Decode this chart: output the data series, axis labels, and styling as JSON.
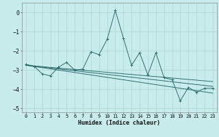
{
  "xlabel": "Humidex (Indice chaleur)",
  "background_color": "#c8ecec",
  "grid_color": "#b0d8d8",
  "line_color": "#2d6b6b",
  "xlim": [
    -0.5,
    23.5
  ],
  "ylim": [
    -5.2,
    0.5
  ],
  "yticks": [
    0,
    -1,
    -2,
    -3,
    -4,
    -5
  ],
  "xticks": [
    0,
    1,
    2,
    3,
    4,
    5,
    6,
    7,
    8,
    9,
    10,
    11,
    12,
    13,
    14,
    15,
    16,
    17,
    18,
    19,
    20,
    21,
    22,
    23
  ],
  "series": [
    [
      0,
      -2.7
    ],
    [
      1,
      -2.8
    ],
    [
      2,
      -3.2
    ],
    [
      3,
      -3.3
    ],
    [
      4,
      -2.85
    ],
    [
      5,
      -2.6
    ],
    [
      6,
      -3.0
    ],
    [
      7,
      -2.95
    ],
    [
      8,
      -2.05
    ],
    [
      9,
      -2.2
    ],
    [
      10,
      -1.4
    ],
    [
      11,
      0.1
    ],
    [
      12,
      -1.35
    ],
    [
      13,
      -2.75
    ],
    [
      14,
      -2.1
    ],
    [
      15,
      -3.25
    ],
    [
      16,
      -2.1
    ],
    [
      17,
      -3.4
    ],
    [
      18,
      -3.5
    ],
    [
      19,
      -4.6
    ],
    [
      20,
      -3.9
    ],
    [
      21,
      -4.15
    ],
    [
      22,
      -3.95
    ],
    [
      23,
      -3.95
    ]
  ],
  "trend_lines": [
    {
      "x": [
        0,
        23
      ],
      "y": [
        -2.75,
        -3.85
      ]
    },
    {
      "x": [
        0,
        23
      ],
      "y": [
        -2.75,
        -3.6
      ]
    },
    {
      "x": [
        0,
        23
      ],
      "y": [
        -2.75,
        -4.2
      ]
    }
  ]
}
